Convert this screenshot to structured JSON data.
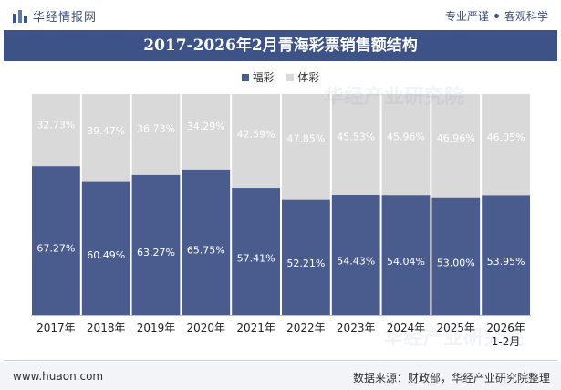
{
  "header": {
    "brand_name": "华经情报网",
    "slogan_left": "专业严谨",
    "slogan_right": "客观科学"
  },
  "footer": {
    "website": "www.huaon.com",
    "source": "数据来源：财政部，华经产业研究院整理"
  },
  "chart_data": {
    "type": "bar",
    "stacked": true,
    "percent": true,
    "title": "2017-2026年2月青海彩票销售额结构",
    "categories": [
      "2017年",
      "2018年",
      "2019年",
      "2020年",
      "2021年",
      "2022年",
      "2023年",
      "2024年",
      "2025年",
      "2026年 1-2月"
    ],
    "category_lines": [
      [
        "2017年"
      ],
      [
        "2018年"
      ],
      [
        "2019年"
      ],
      [
        "2020年"
      ],
      [
        "2021年"
      ],
      [
        "2022年"
      ],
      [
        "2023年"
      ],
      [
        "2024年"
      ],
      [
        "2025年"
      ],
      [
        "2026年",
        "1-2月"
      ]
    ],
    "series": [
      {
        "name": "福彩",
        "color": "#4a5b8e",
        "values": [
          67.27,
          60.49,
          63.27,
          65.75,
          57.41,
          52.21,
          54.43,
          54.04,
          53.0,
          53.95
        ],
        "labels": [
          "67.27%",
          "60.49%",
          "63.27%",
          "65.75%",
          "57.41%",
          "52.21%",
          "54.43%",
          "54.04%",
          "53.00%",
          "53.95%"
        ]
      },
      {
        "name": "体彩",
        "color": "#d9d9d9",
        "values": [
          32.73,
          39.47,
          36.73,
          34.29,
          42.59,
          47.85,
          45.53,
          45.96,
          46.96,
          46.05
        ],
        "labels": [
          "32.73%",
          "39.47%",
          "36.73%",
          "34.29%",
          "42.59%",
          "47.85%",
          "45.53%",
          "45.96%",
          "46.96%",
          "46.05%"
        ]
      }
    ],
    "ylim": [
      0,
      100
    ],
    "legend_position": "top-center",
    "grid": false
  }
}
